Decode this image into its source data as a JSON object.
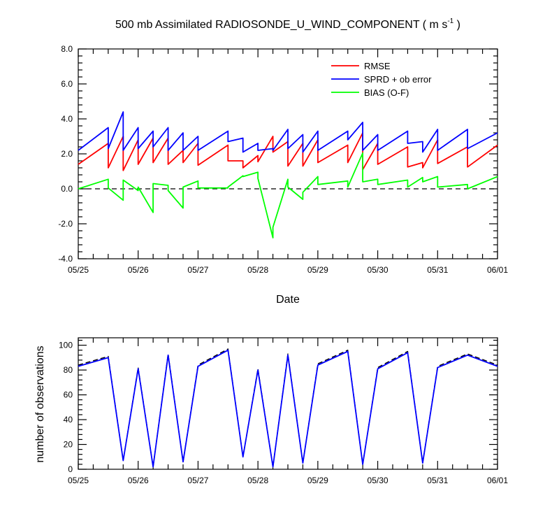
{
  "chart_data": [
    {
      "type": "line",
      "title_main": "500 mb Assimilated RADIOSONDE_U_WIND_COMPONENT ( m s",
      "title_sup": "-1",
      "title_end": " )",
      "xlabel": "Date",
      "ylabel": "",
      "xlim": [
        0,
        7
      ],
      "ylim": [
        -4,
        8
      ],
      "x_tick_labels": [
        "05/25",
        "05/26",
        "05/27",
        "05/28",
        "05/29",
        "05/30",
        "05/31",
        "06/01"
      ],
      "y_tick_labels": [
        "-4.0",
        "-2.0",
        "0.0",
        "2.0",
        "4.0",
        "6.0",
        "8.0"
      ],
      "y_ticks": [
        -4,
        -2,
        0,
        2,
        4,
        6,
        8
      ],
      "zero_line": true,
      "legend_position": "top-right",
      "series": [
        {
          "name": "RMSE",
          "color": "#ff0000",
          "points": [
            [
              0,
              1.4
            ],
            [
              0.5,
              2.6
            ],
            [
              0.5,
              1.2
            ],
            [
              0.75,
              3.0
            ],
            [
              0.75,
              1.05
            ],
            [
              1.0,
              2.8
            ],
            [
              1.0,
              1.4
            ],
            [
              1.25,
              2.9
            ],
            [
              1.25,
              1.5
            ],
            [
              1.5,
              2.9
            ],
            [
              1.5,
              1.4
            ],
            [
              1.75,
              2.2
            ],
            [
              1.75,
              1.5
            ],
            [
              2.0,
              2.6
            ],
            [
              2.0,
              1.35
            ],
            [
              2.5,
              2.5
            ],
            [
              2.5,
              1.6
            ],
            [
              2.75,
              1.6
            ],
            [
              2.75,
              1.2
            ],
            [
              3.0,
              1.9
            ],
            [
              3.0,
              1.55
            ],
            [
              3.25,
              3.0
            ],
            [
              3.25,
              2.1
            ],
            [
              3.5,
              2.7
            ],
            [
              3.5,
              1.3
            ],
            [
              3.75,
              2.6
            ],
            [
              3.75,
              1.3
            ],
            [
              4.0,
              2.8
            ],
            [
              4.0,
              1.5
            ],
            [
              4.5,
              2.5
            ],
            [
              4.5,
              1.5
            ],
            [
              4.75,
              3.2
            ],
            [
              4.75,
              1.1
            ],
            [
              5.0,
              2.6
            ],
            [
              5.0,
              1.4
            ],
            [
              5.5,
              2.4
            ],
            [
              5.5,
              1.25
            ],
            [
              5.75,
              1.5
            ],
            [
              5.75,
              1.2
            ],
            [
              6.0,
              2.8
            ],
            [
              6.0,
              1.45
            ],
            [
              6.5,
              2.4
            ],
            [
              6.5,
              1.25
            ],
            [
              7.0,
              2.5
            ]
          ]
        },
        {
          "name": "SPRD + ob error",
          "color": "#0000ff",
          "points": [
            [
              0,
              2.2
            ],
            [
              0.5,
              3.5
            ],
            [
              0.5,
              2.3
            ],
            [
              0.75,
              4.4
            ],
            [
              0.75,
              2.2
            ],
            [
              1.0,
              3.5
            ],
            [
              1.0,
              2.3
            ],
            [
              1.25,
              3.3
            ],
            [
              1.25,
              2.4
            ],
            [
              1.5,
              3.5
            ],
            [
              1.5,
              2.2
            ],
            [
              1.75,
              3.2
            ],
            [
              1.75,
              2.2
            ],
            [
              2.0,
              3.0
            ],
            [
              2.0,
              2.2
            ],
            [
              2.5,
              3.3
            ],
            [
              2.5,
              2.7
            ],
            [
              2.75,
              2.9
            ],
            [
              2.75,
              2.1
            ],
            [
              3.0,
              2.6
            ],
            [
              3.0,
              2.2
            ],
            [
              3.25,
              2.3
            ],
            [
              3.25,
              2.2
            ],
            [
              3.5,
              3.4
            ],
            [
              3.5,
              2.3
            ],
            [
              3.75,
              3.1
            ],
            [
              3.75,
              2.1
            ],
            [
              4.0,
              3.3
            ],
            [
              4.0,
              2.2
            ],
            [
              4.5,
              3.3
            ],
            [
              4.5,
              2.8
            ],
            [
              4.75,
              3.8
            ],
            [
              4.75,
              2.2
            ],
            [
              5.0,
              3.1
            ],
            [
              5.0,
              2.2
            ],
            [
              5.5,
              3.3
            ],
            [
              5.5,
              2.6
            ],
            [
              5.75,
              2.7
            ],
            [
              5.75,
              2.1
            ],
            [
              6.0,
              3.4
            ],
            [
              6.0,
              2.2
            ],
            [
              6.5,
              3.4
            ],
            [
              6.5,
              2.3
            ],
            [
              7.0,
              3.2
            ]
          ]
        },
        {
          "name": "BIAS (O-F)",
          "color": "#00ff00",
          "points": [
            [
              0,
              0
            ],
            [
              0.5,
              0.55
            ],
            [
              0.5,
              0.05
            ],
            [
              0.75,
              -0.65
            ],
            [
              0.75,
              0.5
            ],
            [
              1.0,
              -0.1
            ],
            [
              1.0,
              0.1
            ],
            [
              1.25,
              -1.35
            ],
            [
              1.25,
              0.3
            ],
            [
              1.5,
              0.2
            ],
            [
              1.5,
              -0.1
            ],
            [
              1.75,
              -1.1
            ],
            [
              1.75,
              0.1
            ],
            [
              2.0,
              0.45
            ],
            [
              2.0,
              0.05
            ],
            [
              2.5,
              0.05
            ],
            [
              2.5,
              0.1
            ],
            [
              2.75,
              0.75
            ],
            [
              2.75,
              0.7
            ],
            [
              3.0,
              0.95
            ],
            [
              3.0,
              0.6
            ],
            [
              3.25,
              -2.8
            ],
            [
              3.25,
              -2.2
            ],
            [
              3.5,
              0.55
            ],
            [
              3.5,
              0.1
            ],
            [
              3.75,
              -0.6
            ],
            [
              3.75,
              -0.2
            ],
            [
              4.0,
              0.7
            ],
            [
              4.0,
              0.25
            ],
            [
              4.5,
              0.45
            ],
            [
              4.5,
              0.1
            ],
            [
              4.75,
              2.05
            ],
            [
              4.75,
              0.4
            ],
            [
              5.0,
              0.55
            ],
            [
              5.0,
              0.25
            ],
            [
              5.5,
              0.5
            ],
            [
              5.5,
              0.1
            ],
            [
              5.75,
              0.65
            ],
            [
              5.75,
              0.4
            ],
            [
              6.0,
              0.7
            ],
            [
              6.0,
              0.1
            ],
            [
              6.5,
              0.25
            ],
            [
              6.5,
              0.0
            ],
            [
              7.0,
              0.7
            ]
          ]
        }
      ]
    },
    {
      "type": "line",
      "title": "",
      "xlabel": "",
      "ylabel": "number of observations",
      "xlim": [
        0,
        7
      ],
      "ylim": [
        0,
        106
      ],
      "x_tick_labels": [
        "05/25",
        "05/26",
        "05/27",
        "05/28",
        "05/29",
        "05/30",
        "05/31",
        "06/01"
      ],
      "y_tick_labels": [
        "0",
        "20",
        "40",
        "60",
        "80",
        "100"
      ],
      "y_ticks": [
        0,
        20,
        40,
        60,
        80,
        100
      ],
      "series": [
        {
          "color": "#000000",
          "dash": true,
          "x": [
            0,
            0.5,
            0.75,
            1.0,
            1.25,
            1.5,
            1.75,
            2.0,
            2.5,
            2.75,
            3.0,
            3.25,
            3.5,
            3.75,
            4.0,
            4.5,
            4.75,
            5.0,
            5.5,
            5.75,
            6.0,
            6.5,
            7.0
          ],
          "values": [
            84,
            91,
            7,
            82,
            2,
            93,
            6,
            84,
            97,
            10,
            81,
            2,
            93,
            5,
            85,
            96,
            4,
            82,
            95,
            5,
            83,
            93,
            84
          ]
        },
        {
          "color": "#0000ff",
          "dash": false,
          "x": [
            0,
            0.5,
            0.75,
            1.0,
            1.25,
            1.5,
            1.75,
            2.0,
            2.5,
            2.75,
            3.0,
            3.25,
            3.5,
            3.75,
            4.0,
            4.5,
            4.75,
            5.0,
            5.5,
            5.75,
            6.0,
            6.5,
            7.0
          ],
          "values": [
            83,
            90,
            7,
            81,
            2,
            92,
            6,
            83,
            96,
            10,
            80,
            2,
            92,
            5,
            84,
            95,
            4,
            81,
            94,
            5,
            82,
            92,
            83
          ]
        }
      ]
    }
  ]
}
